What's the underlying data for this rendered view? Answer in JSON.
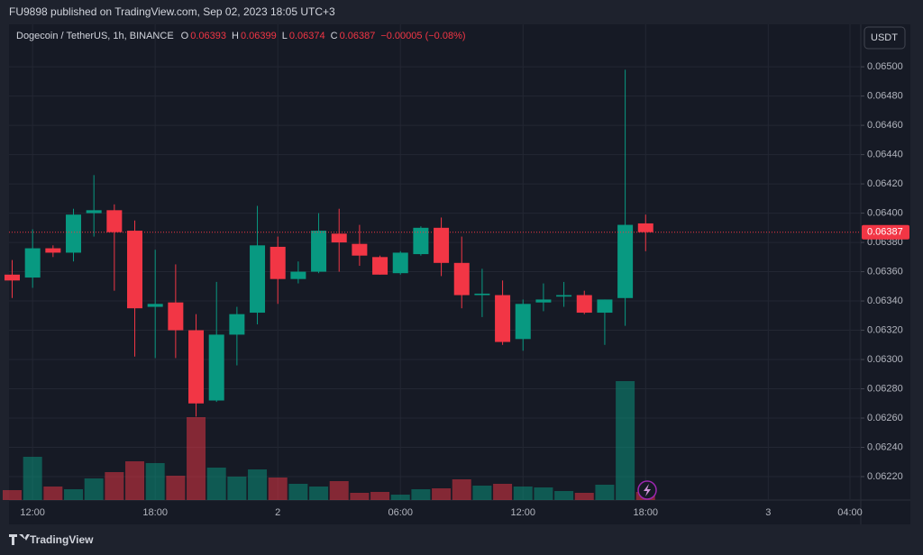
{
  "header": "FU9898 published on TradingView.com, Sep 02, 2023 18:05 UTC+3",
  "footer": "TradingView",
  "currency_button": "USDT",
  "chart_data": {
    "type": "candlestick",
    "title": "Dogecoin / TetherUS, 1h, BINANCE",
    "legend": {
      "open": "O",
      "high": "H",
      "low": "L",
      "close": "C",
      "change": "−0.00005 (−0.08%)"
    },
    "up_color": "#089981",
    "down_color": "#f23645",
    "categories": [
      null,
      "12:00",
      null,
      null,
      null,
      null,
      null,
      "18:00",
      null,
      null,
      null,
      null,
      null,
      "2",
      null,
      null,
      null,
      null,
      null,
      "06:00",
      null,
      null,
      null,
      null,
      null,
      "12:00",
      null,
      null,
      null,
      null,
      null,
      "18:00",
      null,
      null,
      null,
      null,
      null,
      "3",
      null,
      null,
      null,
      "04:00"
    ],
    "open": [
      0.06358,
      0.06356,
      0.06376,
      0.06373,
      0.064,
      0.06402,
      0.06388,
      0.06336,
      0.06339,
      0.0632,
      0.06272,
      0.06317,
      0.06332,
      0.06377,
      0.06355,
      0.0636,
      0.06386,
      0.06379,
      0.0637,
      0.06359,
      0.06372,
      0.0639,
      0.06366,
      0.06344,
      0.06344,
      0.06314,
      0.06339,
      0.06343,
      0.06344,
      0.06332,
      0.06342,
      0.06393,
      null,
      null,
      null,
      null,
      null,
      null,
      null,
      null,
      null,
      null
    ],
    "high": [
      0.06368,
      0.06389,
      0.06378,
      0.06403,
      0.06426,
      0.06406,
      0.06395,
      0.06375,
      0.06365,
      0.06331,
      0.06353,
      0.06336,
      0.06405,
      0.06384,
      0.06367,
      0.064,
      0.06403,
      0.06392,
      0.06371,
      0.06374,
      0.06391,
      0.06397,
      0.06384,
      0.06362,
      0.06354,
      0.06341,
      0.06352,
      0.06353,
      0.06347,
      0.06341,
      0.06498,
      0.06399,
      null,
      null,
      null,
      null,
      null,
      null,
      null,
      null,
      null,
      null
    ],
    "low": [
      0.06342,
      0.06349,
      0.0637,
      0.06367,
      0.06384,
      0.06347,
      0.06302,
      0.06301,
      0.06301,
      0.06261,
      0.06271,
      0.06296,
      0.06324,
      0.06338,
      0.06352,
      0.06359,
      0.0636,
      0.06364,
      0.06358,
      0.06358,
      0.06371,
      0.06357,
      0.06335,
      0.06329,
      0.0631,
      0.06306,
      0.06333,
      0.06336,
      0.06331,
      0.0631,
      0.06323,
      0.06374,
      null,
      null,
      null,
      null,
      null,
      null,
      null,
      null,
      null,
      null
    ],
    "close": [
      0.06354,
      0.06376,
      0.06373,
      0.06399,
      0.06402,
      0.06387,
      0.06335,
      0.06338,
      0.0632,
      0.0627,
      0.06317,
      0.06331,
      0.06378,
      0.06355,
      0.0636,
      0.06388,
      0.0638,
      0.06371,
      0.06358,
      0.06373,
      0.0639,
      0.06366,
      0.06344,
      0.06345,
      0.06312,
      0.06338,
      0.06341,
      0.06344,
      0.06332,
      0.06341,
      0.06392,
      0.06387,
      null,
      null,
      null,
      null,
      null,
      null,
      null,
      null,
      null,
      null
    ],
    "volume": [
      11,
      48,
      15,
      12,
      24,
      31,
      43,
      41,
      27,
      92,
      36,
      26,
      34,
      25,
      18,
      15,
      21,
      8,
      9,
      6,
      12,
      13,
      23,
      16,
      18,
      15,
      14,
      10,
      8,
      17,
      132,
      9,
      null,
      null,
      null,
      null,
      null,
      null,
      null,
      null,
      null,
      null
    ],
    "ylim": [
      0.06204,
      0.06529
    ],
    "yticks": [
      {
        "value": 0.0622,
        "label": "0.06220"
      },
      {
        "value": 0.0624,
        "label": "0.06240"
      },
      {
        "value": 0.0626,
        "label": "0.06260"
      },
      {
        "value": 0.0628,
        "label": "0.06280"
      },
      {
        "value": 0.063,
        "label": "0.06300"
      },
      {
        "value": 0.0632,
        "label": "0.06320"
      },
      {
        "value": 0.0634,
        "label": "0.06340"
      },
      {
        "value": 0.0636,
        "label": "0.06360"
      },
      {
        "value": 0.0638,
        "label": "0.06380"
      },
      {
        "value": 0.064,
        "label": "0.06400"
      },
      {
        "value": 0.0642,
        "label": "0.06420"
      },
      {
        "value": 0.0644,
        "label": "0.06440"
      },
      {
        "value": 0.0646,
        "label": "0.06460"
      },
      {
        "value": 0.0648,
        "label": "0.06480"
      },
      {
        "value": 0.065,
        "label": "0.06500"
      }
    ],
    "grid": true
  }
}
